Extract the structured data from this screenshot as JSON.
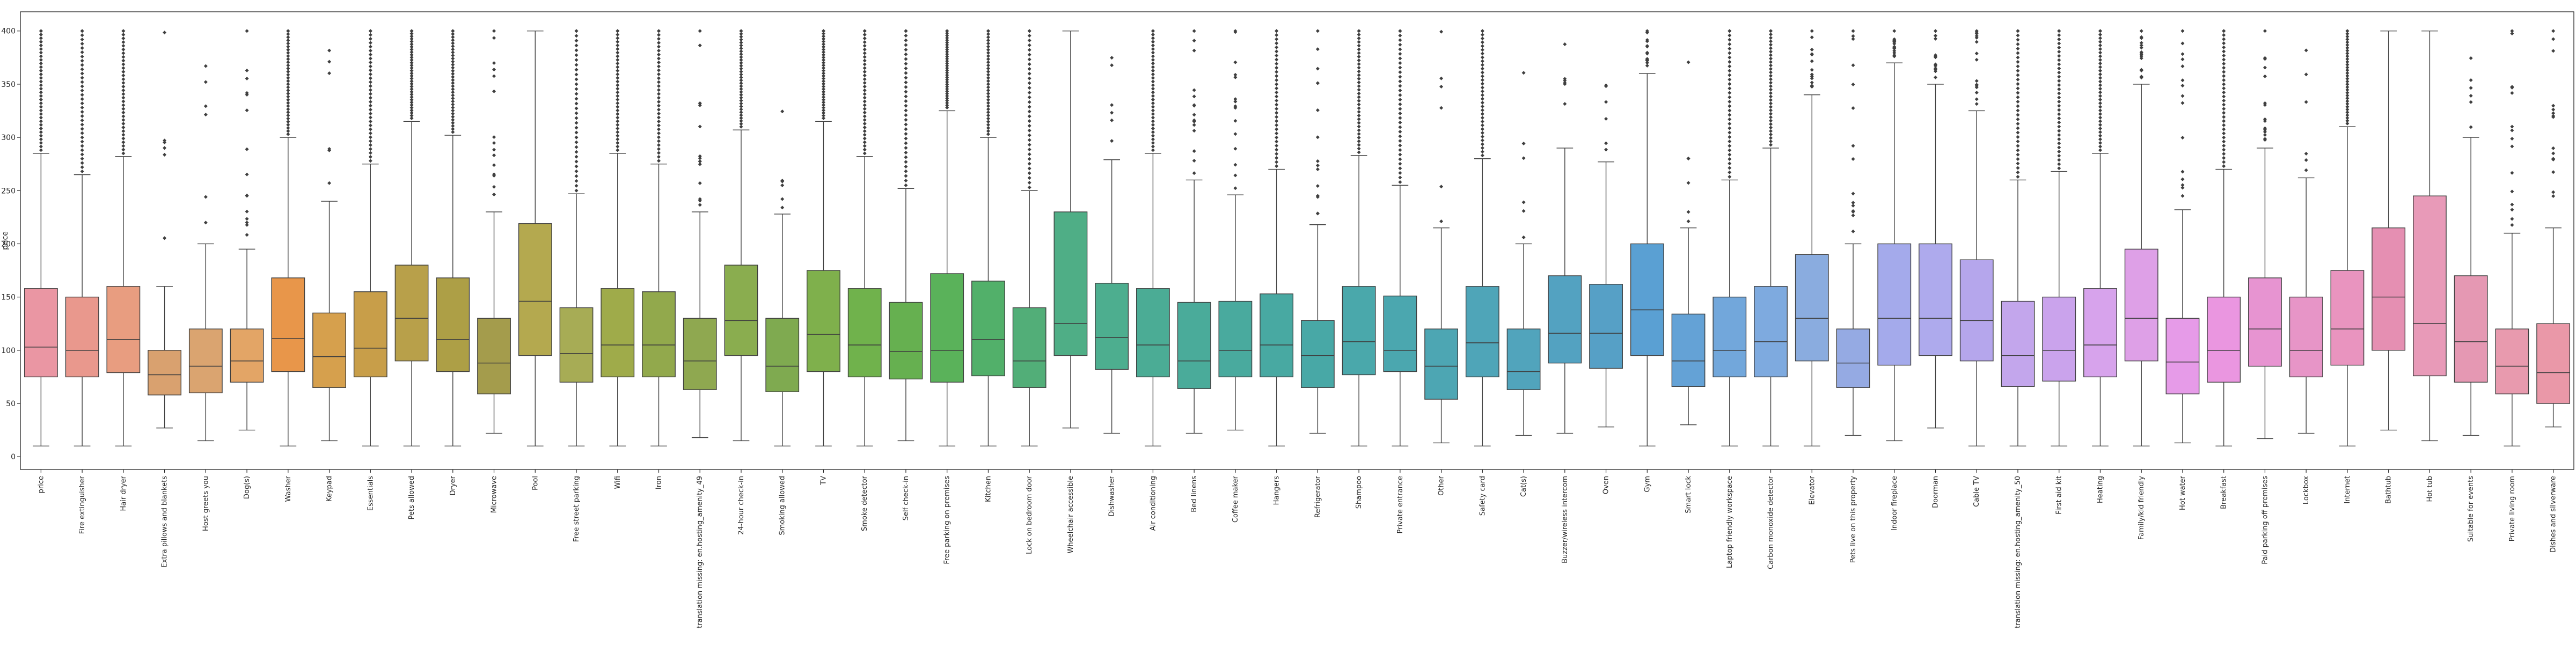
{
  "chart_data": {
    "type": "boxplot",
    "title": "",
    "xlabel": "",
    "ylabel": "price",
    "ylim": [
      -12,
      418
    ],
    "yticks": [
      0,
      50,
      100,
      150,
      200,
      250,
      300,
      350,
      400
    ],
    "yticklabels": [
      "0",
      "50",
      "100",
      "150",
      "200",
      "250",
      "300",
      "350",
      "400"
    ],
    "grid": false,
    "categories": [
      "price",
      "Fire extinguisher",
      "Hair dryer",
      "Extra pillows and blankets",
      "Host greets you",
      "Dog(s)",
      "Washer",
      "Keypad",
      "Essentials",
      "Pets allowed",
      "Dryer",
      "Microwave",
      "Pool",
      "Free street parking",
      "Wifi",
      "Iron",
      "translation missing: en.hosting_amenity_49",
      "24-hour check-in",
      "Smoking allowed",
      "TV",
      "Smoke detector",
      "Self check-in",
      "Free parking on premises",
      "Kitchen",
      "Lock on bedroom door",
      "Wheelchair accessible",
      "Dishwasher",
      "Air conditioning",
      "Bed linens",
      "Coffee maker",
      "Hangers",
      "Refrigerator",
      "Shampoo",
      "Private entrance",
      "Other",
      "Safety card",
      "Cat(s)",
      "Buzzer/wireless intercom",
      "Oven",
      "Gym",
      "Smart lock",
      "Laptop friendly workspace",
      "Carbon monoxide detector",
      "Elevator",
      "Pets live on this property",
      "Indoor fireplace",
      "Doorman",
      "Cable TV",
      "translation missing: en.hosting_amenity_50",
      "First aid kit",
      "Heating",
      "Family/kid friendly",
      "Hot water",
      "Breakfast",
      "Paid parking off premises",
      "Lockbox",
      "Internet",
      "Bathtub",
      "Hot tub",
      "Suitable for events",
      "Private living room",
      "Dishes and silverware"
    ],
    "colors": [
      "#ea96a3",
      "#e9988d",
      "#e89d80",
      "#d9a16f",
      "#daa470",
      "#e3a566",
      "#e8964a",
      "#d6a04d",
      "#c89e49",
      "#b8a04a",
      "#ad9f46",
      "#a49c4c",
      "#b4a94f",
      "#a7ac55",
      "#9fab4a",
      "#92a94c",
      "#8fa850",
      "#8aad4f",
      "#7faa50",
      "#7fb04c",
      "#70b24c",
      "#66b050",
      "#5ab25a",
      "#52b06a",
      "#52ae78",
      "#4fae86",
      "#4dae8f",
      "#4bac95",
      "#4aab9a",
      "#49aa9e",
      "#48a9a2",
      "#48a8a6",
      "#4aa8ab",
      "#4ba7af",
      "#4da6b3",
      "#4fa5b8",
      "#51a4bc",
      "#53a2c1",
      "#56a0c6",
      "#5aa0d3",
      "#64a2d6",
      "#72a7db",
      "#7eaadf",
      "#8aacdf",
      "#95aae3",
      "#a4aaeb",
      "#aeaaed",
      "#b5a6ec",
      "#c3a6ec",
      "#caa3ec",
      "#d7a3ec",
      "#dea0e7",
      "#e69be8",
      "#ea96e0",
      "#e794d1",
      "#e795c7",
      "#e994bf",
      "#e58fb2",
      "#e89ab8",
      "#e598b3",
      "#e89aae",
      "#ea98a8"
    ],
    "boxes": [
      {
        "whislo": 10,
        "q1": 75,
        "med": 103,
        "q3": 158,
        "whishi": 285,
        "fliers": "dense"
      },
      {
        "whislo": 10,
        "q1": 75,
        "med": 100,
        "q3": 150,
        "whishi": 265,
        "fliers": "dense"
      },
      {
        "whislo": 10,
        "q1": 79,
        "med": 110,
        "q3": 160,
        "whishi": 282,
        "fliers": "dense"
      },
      {
        "whislo": 27,
        "q1": 58,
        "med": 77,
        "q3": 100,
        "whishi": 160,
        "fliers": "sparse"
      },
      {
        "whislo": 15,
        "q1": 60,
        "med": 85,
        "q3": 120,
        "whishi": 200,
        "fliers": "sparse"
      },
      {
        "whislo": 25,
        "q1": 70,
        "med": 90,
        "q3": 120,
        "whishi": 195,
        "fliers": "medium"
      },
      {
        "whislo": 10,
        "q1": 80,
        "med": 111,
        "q3": 168,
        "whishi": 300,
        "fliers": "dense"
      },
      {
        "whislo": 15,
        "q1": 65,
        "med": 94,
        "q3": 135,
        "whishi": 240,
        "fliers": "sparse"
      },
      {
        "whislo": 10,
        "q1": 75,
        "med": 102,
        "q3": 155,
        "whishi": 275,
        "fliers": "dense"
      },
      {
        "whislo": 10,
        "q1": 90,
        "med": 130,
        "q3": 180,
        "whishi": 315,
        "fliers": "dense"
      },
      {
        "whislo": 10,
        "q1": 80,
        "med": 110,
        "q3": 168,
        "whishi": 302,
        "fliers": "dense"
      },
      {
        "whislo": 22,
        "q1": 59,
        "med": 88,
        "q3": 130,
        "whishi": 230,
        "fliers": "medium"
      },
      {
        "whislo": 10,
        "q1": 95,
        "med": 146,
        "q3": 219,
        "whishi": 400,
        "fliers": "none"
      },
      {
        "whislo": 10,
        "q1": 70,
        "med": 97,
        "q3": 140,
        "whishi": 247,
        "fliers": "dense"
      },
      {
        "whislo": 10,
        "q1": 75,
        "med": 105,
        "q3": 158,
        "whishi": 285,
        "fliers": "dense"
      },
      {
        "whislo": 10,
        "q1": 75,
        "med": 105,
        "q3": 155,
        "whishi": 275,
        "fliers": "dense"
      },
      {
        "whislo": 18,
        "q1": 63,
        "med": 90,
        "q3": 130,
        "whishi": 230,
        "fliers": "medium"
      },
      {
        "whislo": 15,
        "q1": 95,
        "med": 128,
        "q3": 180,
        "whishi": 307,
        "fliers": "dense"
      },
      {
        "whislo": 10,
        "q1": 61,
        "med": 85,
        "q3": 130,
        "whishi": 228,
        "fliers": "sparse"
      },
      {
        "whislo": 10,
        "q1": 80,
        "med": 115,
        "q3": 175,
        "whishi": 315,
        "fliers": "dense"
      },
      {
        "whislo": 10,
        "q1": 75,
        "med": 105,
        "q3": 158,
        "whishi": 282,
        "fliers": "dense"
      },
      {
        "whislo": 15,
        "q1": 73,
        "med": 99,
        "q3": 145,
        "whishi": 252,
        "fliers": "dense"
      },
      {
        "whislo": 10,
        "q1": 70,
        "med": 100,
        "q3": 172,
        "whishi": 325,
        "fliers": "dense"
      },
      {
        "whislo": 10,
        "q1": 76,
        "med": 110,
        "q3": 165,
        "whishi": 300,
        "fliers": "dense"
      },
      {
        "whislo": 10,
        "q1": 65,
        "med": 90,
        "q3": 140,
        "whishi": 250,
        "fliers": "dense"
      },
      {
        "whislo": 27,
        "q1": 95,
        "med": 125,
        "q3": 230,
        "whishi": 400,
        "fliers": "none"
      },
      {
        "whislo": 22,
        "q1": 82,
        "med": 112,
        "q3": 163,
        "whishi": 279,
        "fliers": "sparse"
      },
      {
        "whislo": 10,
        "q1": 75,
        "med": 105,
        "q3": 158,
        "whishi": 285,
        "fliers": "dense"
      },
      {
        "whislo": 22,
        "q1": 64,
        "med": 90,
        "q3": 145,
        "whishi": 260,
        "fliers": "medium"
      },
      {
        "whislo": 25,
        "q1": 75,
        "med": 100,
        "q3": 146,
        "whishi": 246,
        "fliers": "medium"
      },
      {
        "whislo": 10,
        "q1": 75,
        "med": 105,
        "q3": 153,
        "whishi": 270,
        "fliers": "dense"
      },
      {
        "whislo": 22,
        "q1": 65,
        "med": 95,
        "q3": 128,
        "whishi": 218,
        "fliers": "medium"
      },
      {
        "whislo": 10,
        "q1": 77,
        "med": 108,
        "q3": 160,
        "whishi": 283,
        "fliers": "dense"
      },
      {
        "whislo": 10,
        "q1": 80,
        "med": 100,
        "q3": 151,
        "whishi": 255,
        "fliers": "dense"
      },
      {
        "whislo": 13,
        "q1": 54,
        "med": 85,
        "q3": 120,
        "whishi": 215,
        "fliers": "sparse"
      },
      {
        "whislo": 10,
        "q1": 75,
        "med": 107,
        "q3": 160,
        "whishi": 280,
        "fliers": "dense"
      },
      {
        "whislo": 20,
        "q1": 63,
        "med": 80,
        "q3": 120,
        "whishi": 200,
        "fliers": "sparse"
      },
      {
        "whislo": 22,
        "q1": 88,
        "med": 116,
        "q3": 170,
        "whishi": 290,
        "fliers": "sparse"
      },
      {
        "whislo": 28,
        "q1": 83,
        "med": 116,
        "q3": 162,
        "whishi": 277,
        "fliers": "sparse"
      },
      {
        "whislo": 10,
        "q1": 95,
        "med": 138,
        "q3": 200,
        "whishi": 360,
        "fliers": "medium"
      },
      {
        "whislo": 30,
        "q1": 66,
        "med": 90,
        "q3": 134,
        "whishi": 215,
        "fliers": "sparse"
      },
      {
        "whislo": 10,
        "q1": 75,
        "med": 100,
        "q3": 150,
        "whishi": 260,
        "fliers": "dense"
      },
      {
        "whislo": 10,
        "q1": 75,
        "med": 108,
        "q3": 160,
        "whishi": 290,
        "fliers": "dense"
      },
      {
        "whislo": 10,
        "q1": 90,
        "med": 130,
        "q3": 190,
        "whishi": 340,
        "fliers": "medium"
      },
      {
        "whislo": 20,
        "q1": 65,
        "med": 88,
        "q3": 120,
        "whishi": 200,
        "fliers": "medium"
      },
      {
        "whislo": 15,
        "q1": 86,
        "med": 130,
        "q3": 200,
        "whishi": 370,
        "fliers": "medium"
      },
      {
        "whislo": 27,
        "q1": 95,
        "med": 130,
        "q3": 200,
        "whishi": 350,
        "fliers": "medium"
      },
      {
        "whislo": 10,
        "q1": 90,
        "med": 128,
        "q3": 185,
        "whishi": 325,
        "fliers": "medium"
      },
      {
        "whislo": 10,
        "q1": 66,
        "med": 95,
        "q3": 146,
        "whishi": 260,
        "fliers": "dense"
      },
      {
        "whislo": 10,
        "q1": 71,
        "med": 100,
        "q3": 150,
        "whishi": 268,
        "fliers": "dense"
      },
      {
        "whislo": 10,
        "q1": 75,
        "med": 105,
        "q3": 158,
        "whishi": 285,
        "fliers": "dense"
      },
      {
        "whislo": 10,
        "q1": 90,
        "med": 130,
        "q3": 195,
        "whishi": 350,
        "fliers": "medium"
      },
      {
        "whislo": 13,
        "q1": 59,
        "med": 89,
        "q3": 130,
        "whishi": 232,
        "fliers": "medium"
      },
      {
        "whislo": 10,
        "q1": 70,
        "med": 100,
        "q3": 150,
        "whishi": 270,
        "fliers": "dense"
      },
      {
        "whislo": 17,
        "q1": 85,
        "med": 120,
        "q3": 168,
        "whishi": 290,
        "fliers": "medium"
      },
      {
        "whislo": 22,
        "q1": 75,
        "med": 100,
        "q3": 150,
        "whishi": 262,
        "fliers": "sparse"
      },
      {
        "whislo": 10,
        "q1": 86,
        "med": 120,
        "q3": 175,
        "whishi": 310,
        "fliers": "dense"
      },
      {
        "whislo": 25,
        "q1": 100,
        "med": 150,
        "q3": 215,
        "whishi": 400,
        "fliers": "none"
      },
      {
        "whislo": 15,
        "q1": 76,
        "med": 125,
        "q3": 245,
        "whishi": 400,
        "fliers": "none"
      },
      {
        "whislo": 20,
        "q1": 70,
        "med": 108,
        "q3": 170,
        "whishi": 300,
        "fliers": "sparse"
      },
      {
        "whislo": 10,
        "q1": 59,
        "med": 85,
        "q3": 120,
        "whishi": 210,
        "fliers": "medium"
      },
      {
        "whislo": 28,
        "q1": 50,
        "med": 79,
        "q3": 125,
        "whishi": 215,
        "fliers": "medium"
      }
    ]
  }
}
